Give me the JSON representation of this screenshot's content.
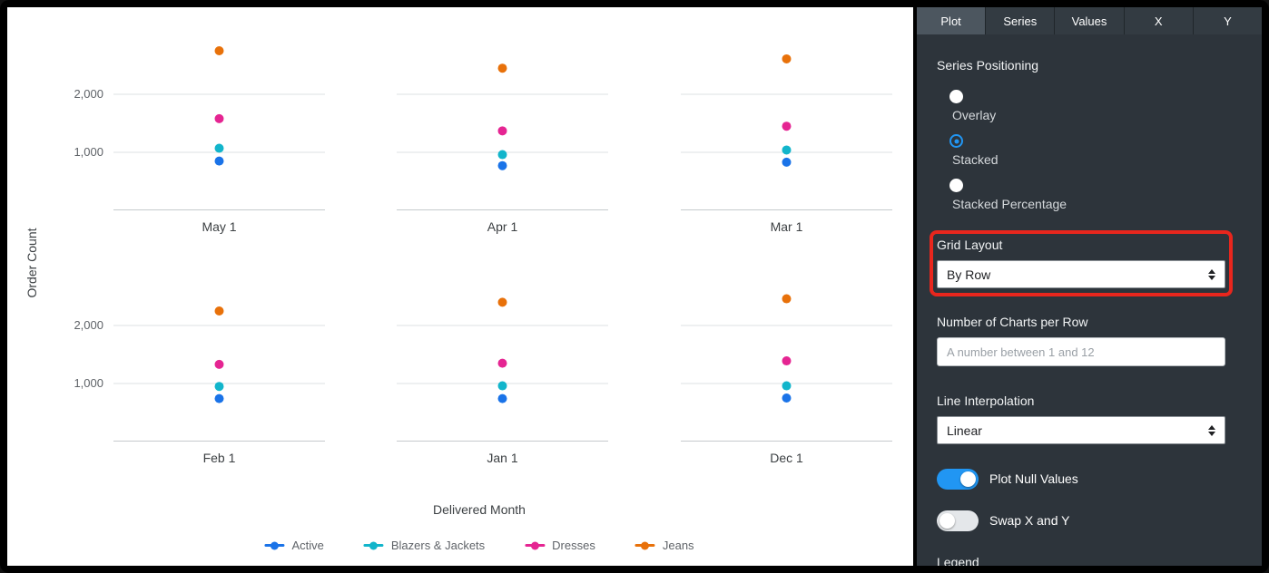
{
  "chart_data": {
    "type": "scatter",
    "layout": "small-multiples-grid",
    "grid": {
      "rows": 2,
      "cols": 3
    },
    "ylabel": "Order Count",
    "xlabel": "Delivered Month",
    "ylim": [
      0,
      3000
    ],
    "y_ticks": [
      2000,
      1000
    ],
    "y_tick_labels": [
      "2,000",
      "1,000"
    ],
    "facets": [
      "May 1",
      "Apr 1",
      "Mar 1",
      "Feb 1",
      "Jan 1",
      "Dec 1"
    ],
    "series": [
      {
        "name": "Active",
        "color": "#1A73E8",
        "values": [
          850,
          770,
          830,
          740,
          740,
          750
        ]
      },
      {
        "name": "Blazers & Jackets",
        "color": "#12B5CB",
        "values": [
          1070,
          960,
          1040,
          950,
          960,
          960
        ]
      },
      {
        "name": "Dresses",
        "color": "#E52592",
        "values": [
          1580,
          1370,
          1450,
          1330,
          1350,
          1390
        ]
      },
      {
        "name": "Jeans",
        "color": "#E8710A",
        "values": [
          2750,
          2450,
          2610,
          2250,
          2400,
          2460
        ]
      }
    ],
    "legend_position": "bottom",
    "grid_on": true
  },
  "panel": {
    "accent_color": "#2196f3",
    "tabs": [
      {
        "label": "Plot",
        "active": true
      },
      {
        "label": "Series",
        "active": false
      },
      {
        "label": "Values",
        "active": false
      },
      {
        "label": "X",
        "active": false
      },
      {
        "label": "Y",
        "active": false
      }
    ],
    "series_positioning": {
      "label": "Series Positioning",
      "options": [
        {
          "label": "Overlay",
          "selected": false
        },
        {
          "label": "Stacked",
          "selected": true
        },
        {
          "label": "Stacked Percentage",
          "selected": false
        }
      ]
    },
    "grid_layout": {
      "label": "Grid Layout",
      "value": "By Row"
    },
    "charts_per_row": {
      "label": "Number of Charts per Row",
      "value": "",
      "placeholder": "A number between 1 and 12"
    },
    "line_interpolation": {
      "label": "Line Interpolation",
      "value": "Linear"
    },
    "plot_null_values": {
      "label": "Plot Null Values",
      "on": true
    },
    "swap_x_y": {
      "label": "Swap X and Y",
      "on": false
    },
    "legend_section": {
      "label": "Legend"
    }
  },
  "annotation": {
    "type": "highlight-box",
    "color": "#e8261d",
    "around": "Grid Layout"
  }
}
